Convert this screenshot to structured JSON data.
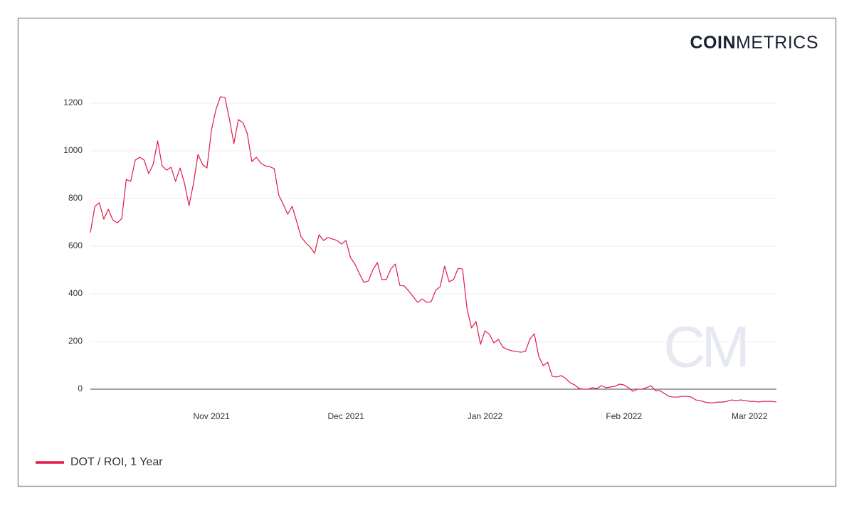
{
  "brand": {
    "strong": "COIN",
    "light": "METRICS"
  },
  "watermark": "CM",
  "chart_data": {
    "type": "line",
    "categories": [
      null,
      null,
      null,
      null,
      null,
      null,
      null,
      null,
      null,
      null,
      null,
      null,
      null,
      null,
      null,
      null,
      null,
      null,
      null,
      null,
      null,
      null,
      null,
      null,
      null,
      null,
      null,
      "Nov 2021",
      null,
      null,
      null,
      null,
      null,
      null,
      null,
      null,
      null,
      null,
      null,
      null,
      null,
      null,
      null,
      null,
      null,
      null,
      null,
      null,
      null,
      null,
      null,
      null,
      null,
      null,
      null,
      null,
      null,
      "Dec 2021",
      null,
      null,
      null,
      null,
      null,
      null,
      null,
      null,
      null,
      null,
      null,
      null,
      null,
      null,
      null,
      null,
      null,
      null,
      null,
      null,
      null,
      null,
      null,
      null,
      null,
      null,
      null,
      null,
      null,
      null,
      "Jan 2022",
      null,
      null,
      null,
      null,
      null,
      null,
      null,
      null,
      null,
      null,
      null,
      null,
      null,
      null,
      null,
      null,
      null,
      null,
      null,
      null,
      null,
      null,
      null,
      null,
      null,
      null,
      null,
      null,
      null,
      null,
      "Feb 2022",
      null,
      null,
      null,
      null,
      null,
      null,
      null,
      null,
      null,
      null,
      null,
      null,
      null,
      null,
      null,
      null,
      null,
      null,
      null,
      null,
      null,
      null,
      null,
      null,
      null,
      null,
      null,
      "Mar 2022",
      null,
      null,
      null,
      null,
      null,
      null
    ],
    "series": [
      {
        "name": "DOT / ROI, 1 Year",
        "color": "#e0194a",
        "values": [
          657,
          767,
          782,
          713,
          755,
          710,
          698,
          716,
          880,
          872,
          961,
          973,
          961,
          904,
          943,
          1042,
          937,
          919,
          931,
          872,
          928,
          863,
          770,
          863,
          985,
          943,
          928,
          1087,
          1173,
          1227,
          1224,
          1134,
          1030,
          1131,
          1119,
          1072,
          955,
          973,
          949,
          937,
          934,
          925,
          815,
          776,
          734,
          767,
          704,
          639,
          615,
          597,
          570,
          648,
          624,
          636,
          630,
          624,
          609,
          624,
          552,
          525,
          484,
          448,
          454,
          501,
          531,
          460,
          460,
          504,
          525,
          436,
          433,
          412,
          388,
          364,
          379,
          364,
          367,
          415,
          430,
          516,
          451,
          460,
          507,
          504,
          337,
          257,
          284,
          188,
          245,
          230,
          194,
          209,
          176,
          167,
          161,
          158,
          155,
          158,
          209,
          233,
          137,
          99,
          113,
          54,
          51,
          57,
          45,
          27,
          18,
          3,
          0,
          0,
          6,
          3,
          15,
          6,
          9,
          12,
          21,
          18,
          6,
          -9,
          0,
          0,
          6,
          15,
          -6,
          -6,
          -18,
          -30,
          -33,
          -33,
          -30,
          -30,
          -33,
          -45,
          -48,
          -54,
          -57,
          -57,
          -54,
          -54,
          -51,
          -45,
          -48,
          -45,
          -48,
          -51,
          -51,
          -54,
          -51,
          -51,
          -51,
          -54
        ]
      }
    ],
    "ylim": [
      -70,
      1270
    ],
    "yticks": [
      0,
      200,
      400,
      600,
      800,
      1000,
      1200
    ],
    "grid": true,
    "legend": "bottom-left"
  }
}
